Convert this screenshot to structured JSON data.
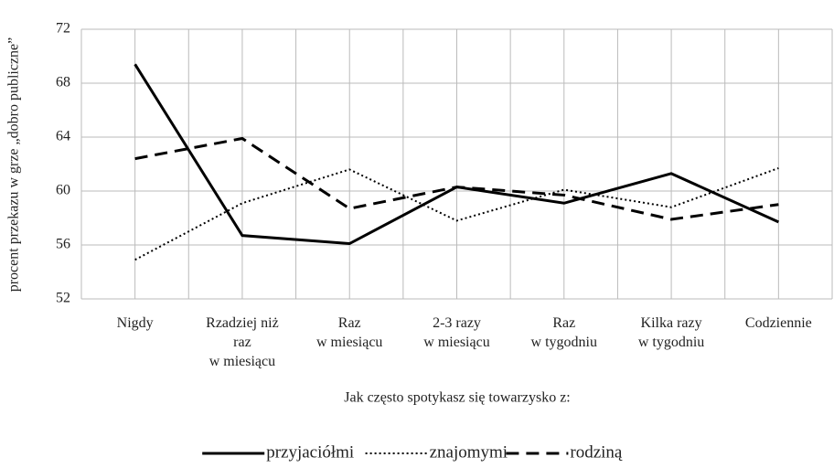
{
  "chart_data": {
    "type": "line",
    "y_label": "procent przekazu w grze „dobro publiczne”",
    "x_label": "Jak często spotykasz się towarzysko z:",
    "categories": [
      "Nigdy",
      "Rzadziej niż\nraz\nw miesiącu",
      "Raz\nw miesiącu",
      "2-3 razy\nw miesiącu",
      "Raz\nw tygodniu",
      "Kilka razy\nw tygodniu",
      "Codziennie"
    ],
    "series": [
      {
        "name": "przyjaciółmi",
        "color": "#000000",
        "dash": "solid",
        "values": [
          69.4,
          56.7,
          56.1,
          60.3,
          59.1,
          61.3,
          57.7
        ]
      },
      {
        "name": "znajomymi",
        "color": "#000000",
        "dash": "dotted",
        "values": [
          54.9,
          59.1,
          61.6,
          57.8,
          60.1,
          58.8,
          61.7
        ]
      },
      {
        "name": "rodziną",
        "color": "#000000",
        "dash": "dashed",
        "values": [
          62.4,
          63.9,
          58.7,
          60.3,
          59.7,
          57.9,
          59.0
        ]
      }
    ],
    "ylim": [
      52,
      72
    ],
    "yticks": [
      52,
      56,
      60,
      64,
      68,
      72
    ],
    "grid": true,
    "legend": "bottom"
  }
}
